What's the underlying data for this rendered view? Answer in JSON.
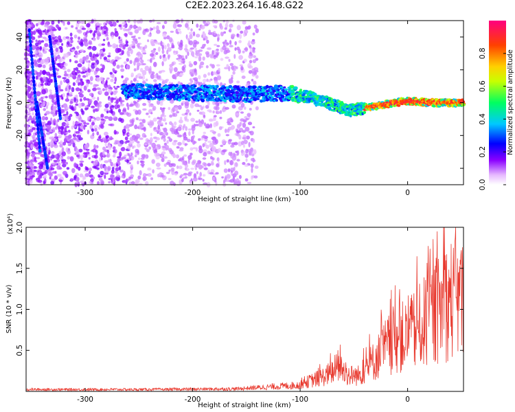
{
  "title": "C2E2.2023.264.16.48.G22",
  "chart_data": [
    {
      "type": "heatmap",
      "xlabel": "Height of straight line (km)",
      "ylabel": "Frequency (Hz)",
      "xlim": [
        -355,
        52
      ],
      "ylim": [
        -50,
        50
      ],
      "xticks": [
        -300,
        -200,
        -100,
        0
      ],
      "yticks": [
        -40,
        -20,
        0,
        20,
        40
      ],
      "colorbar": {
        "label": "Normalized spectral amplitude",
        "range": [
          0,
          1
        ],
        "ticks": [
          0.0,
          0.2,
          0.4,
          0.6,
          0.8
        ],
        "tick_labels": [
          "0.0",
          "0.2",
          "0.4",
          "0.6",
          "0.8"
        ]
      },
      "ridge": {
        "note_x_km": [
          -262,
          -200,
          -150,
          -110,
          -90,
          -70,
          -55,
          -40,
          -20,
          0,
          20,
          50
        ],
        "freq_hz": [
          7,
          6,
          5,
          6,
          3,
          -1,
          -5,
          -3,
          -1,
          1,
          0,
          0
        ]
      }
    },
    {
      "type": "line",
      "xlabel": "Height of straight line (km)",
      "ylabel": "SNR (10 * v/v)",
      "multiplier": "(x10⁴)",
      "xlim": [
        -355,
        52
      ],
      "ylim": [
        0,
        2.0
      ],
      "xticks": [
        -300,
        -200,
        -100,
        0
      ],
      "yticks": [
        0.5,
        1.0,
        1.5,
        2.0
      ],
      "ytick_labels": [
        "0.5",
        "1.0",
        "1.5",
        "2.0"
      ],
      "series": [
        {
          "color": "#e8392e",
          "envelope_x": [
            -355,
            -250,
            -160,
            -130,
            -100,
            -95,
            -80,
            -70,
            -65,
            -55,
            -45,
            -40,
            -30,
            -20,
            -10,
            0,
            10,
            20,
            30,
            40,
            52
          ],
          "envelope_y": [
            0.03,
            0.03,
            0.04,
            0.07,
            0.1,
            0.14,
            0.22,
            0.3,
            0.4,
            0.25,
            0.25,
            0.35,
            0.5,
            0.7,
            0.85,
            0.85,
            1.0,
            1.15,
            1.3,
            1.45,
            1.45
          ]
        }
      ]
    }
  ]
}
